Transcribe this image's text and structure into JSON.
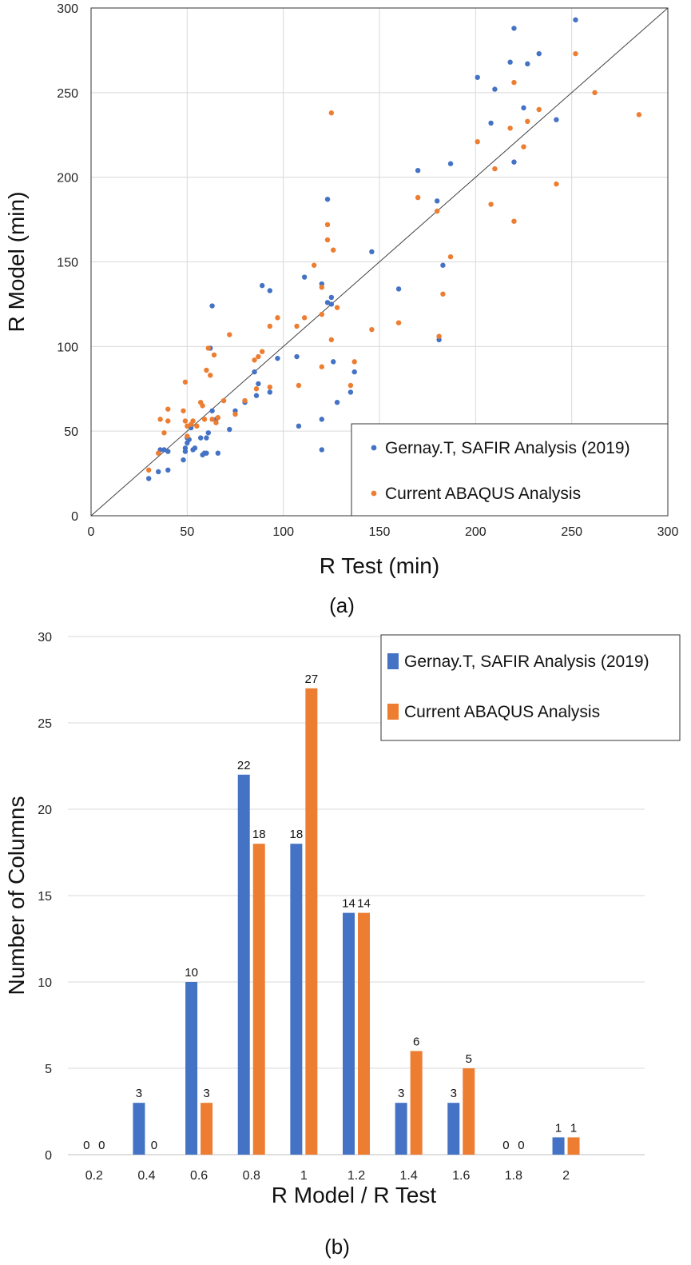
{
  "chart_data": [
    {
      "type": "scatter",
      "caption": "(a)",
      "xlabel": "R Test (min)",
      "ylabel": "R Model (min)",
      "xlim": [
        0,
        300
      ],
      "ylim": [
        0,
        300
      ],
      "xticks": [
        0,
        50,
        100,
        150,
        200,
        250,
        300
      ],
      "yticks": [
        0,
        50,
        100,
        150,
        200,
        250,
        300
      ],
      "grid": true,
      "reference_line": "y = x",
      "legend_position": "bottom-right",
      "series": [
        {
          "name": "Gernay.T, SAFIR Analysis (2019)",
          "color": "#4472C4",
          "points": [
            [
              30,
              22
            ],
            [
              35,
              26
            ],
            [
              36,
              39
            ],
            [
              38,
              39
            ],
            [
              40,
              38
            ],
            [
              40,
              27
            ],
            [
              48,
              33
            ],
            [
              49,
              38
            ],
            [
              49,
              40
            ],
            [
              50,
              43
            ],
            [
              50,
              46
            ],
            [
              51,
              45
            ],
            [
              52,
              52
            ],
            [
              53,
              39
            ],
            [
              54,
              40
            ],
            [
              57,
              46
            ],
            [
              58,
              36
            ],
            [
              59,
              37
            ],
            [
              60,
              37
            ],
            [
              60,
              46
            ],
            [
              61,
              49
            ],
            [
              62,
              99
            ],
            [
              63,
              124
            ],
            [
              63,
              62
            ],
            [
              65,
              57
            ],
            [
              66,
              37
            ],
            [
              72,
              51
            ],
            [
              75,
              62
            ],
            [
              80,
              67
            ],
            [
              85,
              85
            ],
            [
              86,
              71
            ],
            [
              87,
              78
            ],
            [
              89,
              136
            ],
            [
              93,
              133
            ],
            [
              93,
              73
            ],
            [
              97,
              93
            ],
            [
              107,
              94
            ],
            [
              108,
              53
            ],
            [
              111,
              141
            ],
            [
              120,
              137
            ],
            [
              120,
              39
            ],
            [
              120,
              57
            ],
            [
              123,
              187
            ],
            [
              123,
              126
            ],
            [
              125,
              125
            ],
            [
              125,
              129
            ],
            [
              126,
              91
            ],
            [
              128,
              67
            ],
            [
              135,
              73
            ],
            [
              137,
              85
            ],
            [
              146,
              156
            ],
            [
              160,
              134
            ],
            [
              170,
              204
            ],
            [
              180,
              186
            ],
            [
              181,
              104
            ],
            [
              183,
              148
            ],
            [
              187,
              208
            ],
            [
              201,
              259
            ],
            [
              208,
              232
            ],
            [
              210,
              252
            ],
            [
              218,
              268
            ],
            [
              220,
              288
            ],
            [
              220,
              209
            ],
            [
              225,
              241
            ],
            [
              227,
              267
            ],
            [
              233,
              273
            ],
            [
              242,
              234
            ],
            [
              252,
              293
            ]
          ]
        },
        {
          "name": "Current ABAQUS Analysis",
          "color": "#ED7D31",
          "points": [
            [
              30,
              27
            ],
            [
              35,
              37
            ],
            [
              36,
              57
            ],
            [
              38,
              49
            ],
            [
              40,
              63
            ],
            [
              40,
              56
            ],
            [
              48,
              62
            ],
            [
              49,
              79
            ],
            [
              49,
              56
            ],
            [
              50,
              53
            ],
            [
              50,
              47
            ],
            [
              52,
              54
            ],
            [
              53,
              56
            ],
            [
              55,
              53
            ],
            [
              57,
              67
            ],
            [
              58,
              65
            ],
            [
              59,
              57
            ],
            [
              60,
              86
            ],
            [
              61,
              99
            ],
            [
              62,
              83
            ],
            [
              63,
              57
            ],
            [
              64,
              95
            ],
            [
              65,
              55
            ],
            [
              66,
              58
            ],
            [
              69,
              68
            ],
            [
              72,
              107
            ],
            [
              75,
              60
            ],
            [
              80,
              68
            ],
            [
              85,
              92
            ],
            [
              86,
              75
            ],
            [
              87,
              94
            ],
            [
              89,
              97
            ],
            [
              93,
              112
            ],
            [
              93,
              76
            ],
            [
              97,
              117
            ],
            [
              107,
              112
            ],
            [
              108,
              77
            ],
            [
              111,
              117
            ],
            [
              116,
              148
            ],
            [
              120,
              119
            ],
            [
              120,
              135
            ],
            [
              120,
              88
            ],
            [
              123,
              163
            ],
            [
              123,
              172
            ],
            [
              125,
              238
            ],
            [
              125,
              104
            ],
            [
              126,
              157
            ],
            [
              128,
              123
            ],
            [
              135,
              77
            ],
            [
              137,
              91
            ],
            [
              146,
              110
            ],
            [
              160,
              114
            ],
            [
              170,
              188
            ],
            [
              180,
              180
            ],
            [
              181,
              106
            ],
            [
              183,
              131
            ],
            [
              187,
              153
            ],
            [
              201,
              221
            ],
            [
              208,
              184
            ],
            [
              210,
              205
            ],
            [
              218,
              229
            ],
            [
              220,
              256
            ],
            [
              220,
              174
            ],
            [
              225,
              218
            ],
            [
              227,
              233
            ],
            [
              233,
              240
            ],
            [
              242,
              196
            ],
            [
              252,
              273
            ],
            [
              262,
              250
            ],
            [
              285,
              237
            ]
          ]
        }
      ]
    },
    {
      "type": "bar",
      "caption": "(b)",
      "xlabel": "R Model / R Test",
      "ylabel": "Number of Columns",
      "ylim": [
        0,
        30
      ],
      "yticks": [
        0,
        5,
        10,
        15,
        20,
        25,
        30
      ],
      "categories": [
        "0.2",
        "0.4",
        "0.6",
        "0.8",
        "1",
        "1.2",
        "1.4",
        "1.6",
        "1.8",
        "2"
      ],
      "grid": true,
      "legend_position": "top-right",
      "series": [
        {
          "name": "Gernay.T, SAFIR Analysis (2019)",
          "color": "#4472C4",
          "values": [
            0,
            3,
            10,
            22,
            18,
            14,
            3,
            3,
            0,
            1
          ]
        },
        {
          "name": "Current ABAQUS Analysis",
          "color": "#ED7D31",
          "values": [
            0,
            0,
            3,
            18,
            27,
            14,
            6,
            5,
            0,
            1
          ]
        }
      ]
    }
  ]
}
